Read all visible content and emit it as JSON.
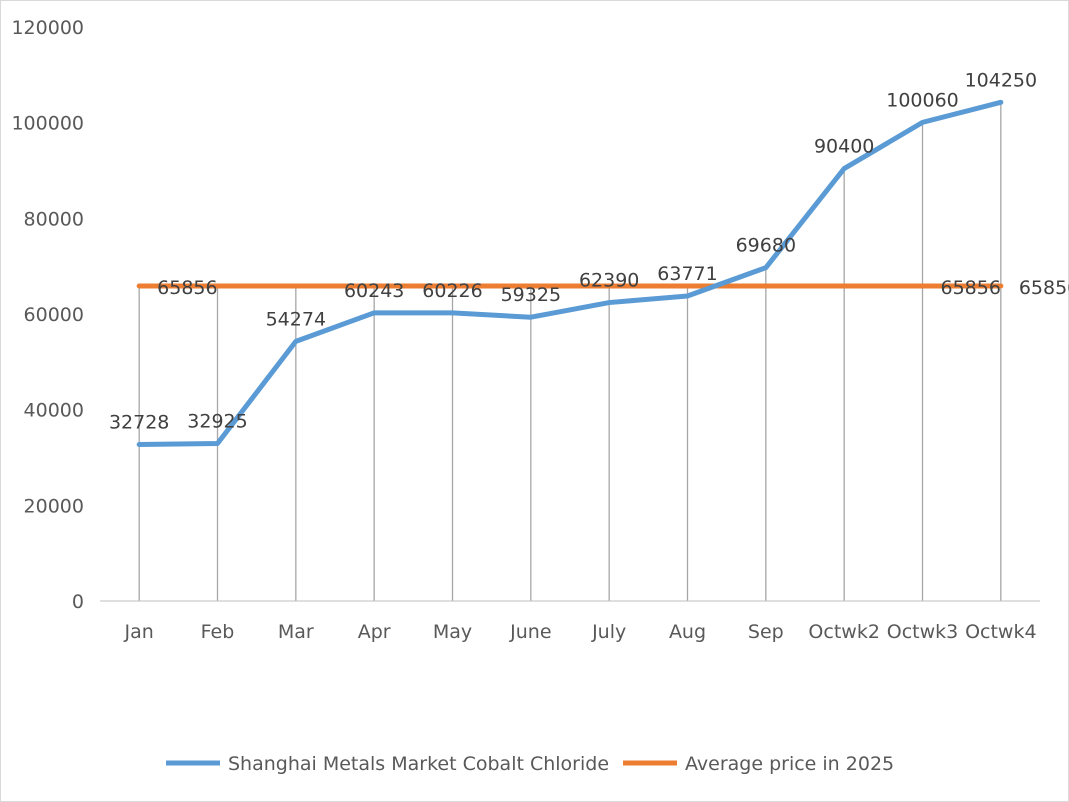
{
  "chart_data": {
    "type": "line",
    "title": "",
    "xlabel": "",
    "ylabel": "",
    "categories": [
      "Jan",
      "Feb",
      "Mar",
      "Apr",
      "May",
      "June",
      "July",
      "Aug",
      "Sep",
      "Octwk2",
      "Octwk3",
      "Octwk4"
    ],
    "ylim": [
      0,
      120000
    ],
    "yticks": [
      0,
      20000,
      40000,
      60000,
      80000,
      100000,
      120000
    ],
    "grid": false,
    "drop_lines": true,
    "legend_position": "bottom",
    "series": [
      {
        "name": "Shanghai Metals Market Cobalt Chloride",
        "color": "#5B9BD5",
        "values": [
          32728,
          32925,
          54274,
          60243,
          60226,
          59325,
          62390,
          63771,
          69680,
          90400,
          100060,
          104250
        ],
        "labels_shown": [
          true,
          true,
          true,
          true,
          true,
          true,
          true,
          true,
          true,
          true,
          true,
          true
        ]
      },
      {
        "name": "Average price in 2025",
        "color": "#ED7D31",
        "values": [
          65856,
          65856,
          65856,
          65856,
          65856,
          65856,
          65856,
          65856,
          65856,
          65856,
          65856,
          65856
        ],
        "labels_shown": [
          true,
          false,
          false,
          false,
          false,
          false,
          false,
          false,
          false,
          false,
          true,
          true
        ]
      }
    ]
  }
}
